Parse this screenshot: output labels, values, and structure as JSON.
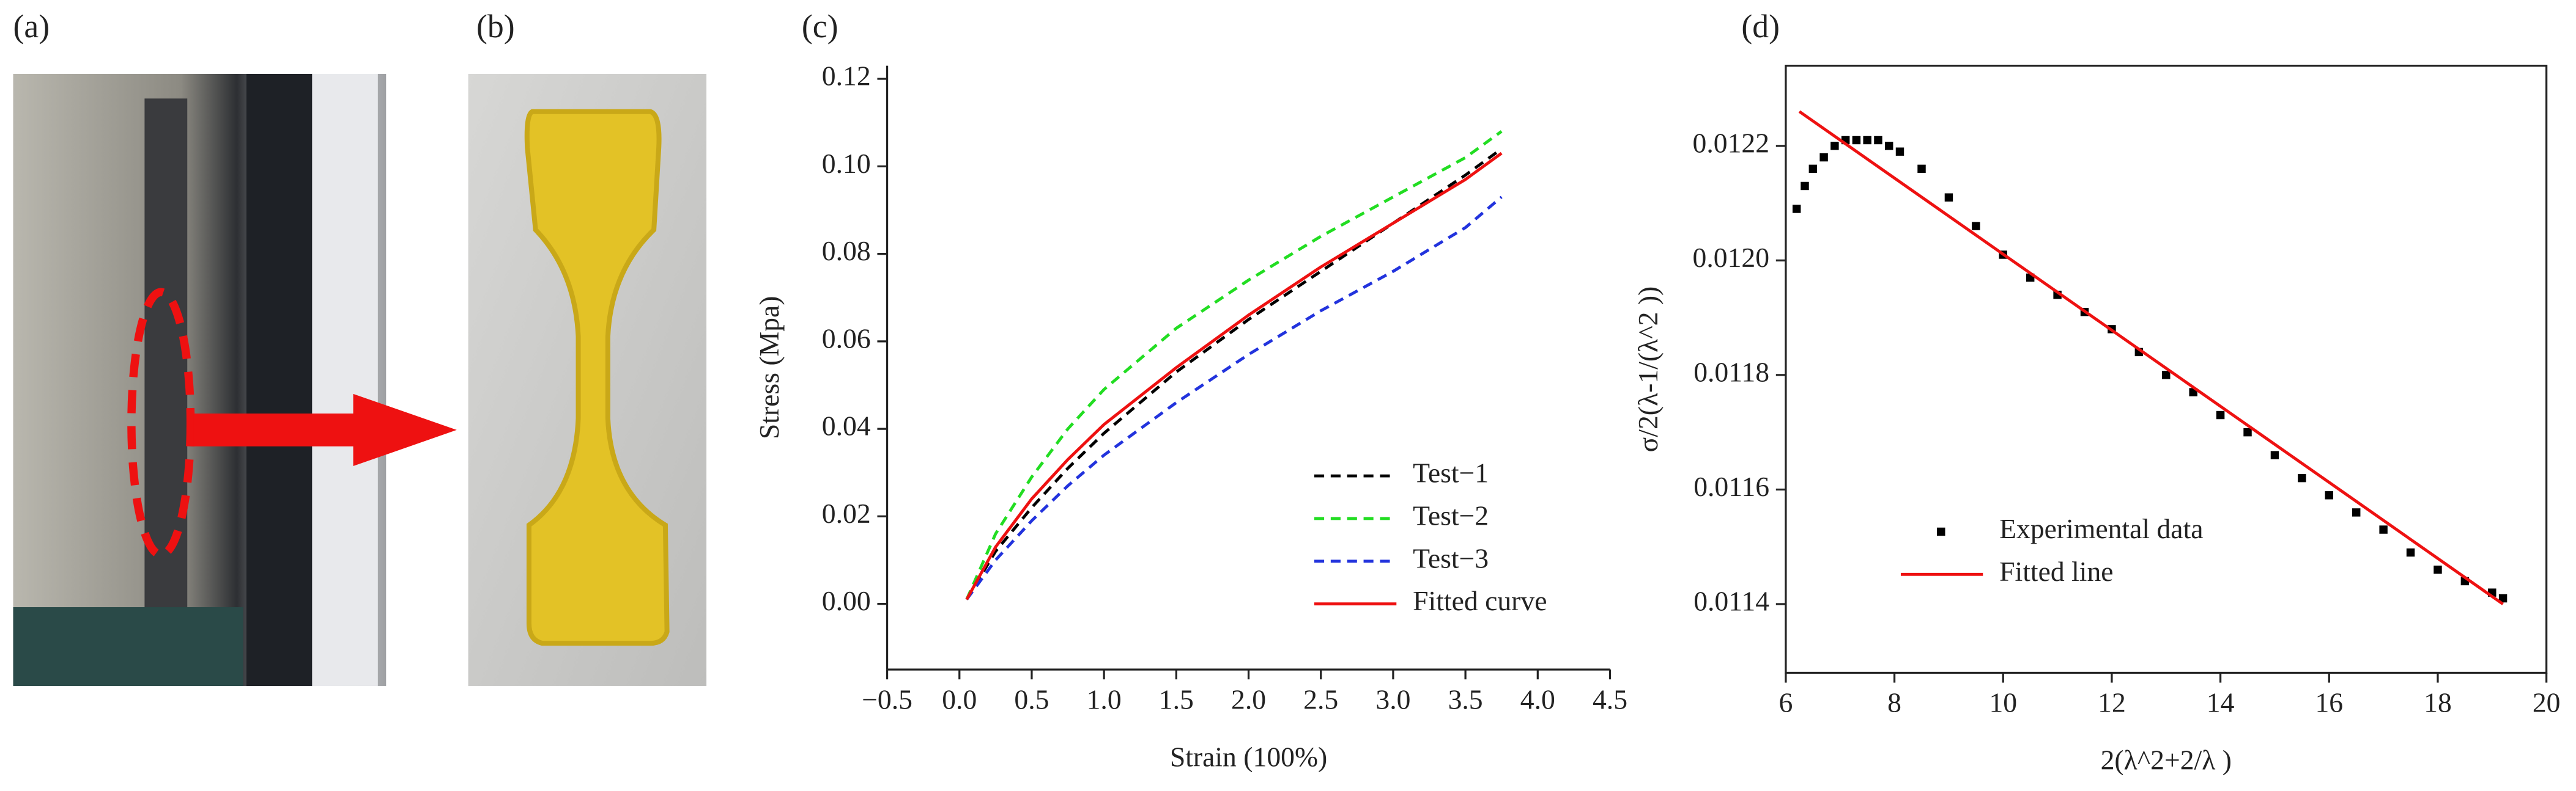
{
  "panel_labels": [
    "(a)",
    "(b)",
    "(c)",
    "(d)"
  ],
  "chart_data": [
    {
      "type": "line",
      "frame": "axes",
      "xlabel": "Strain (100%)",
      "ylabel": "Stress (Mpa)",
      "xlim": [
        -0.5,
        4.5
      ],
      "xticks": [
        {
          "value": -0.5,
          "label": "−0.5"
        },
        {
          "value": 0,
          "label": "0.0"
        },
        0.5,
        {
          "value": 1,
          "label": "1.0"
        },
        1.5,
        {
          "value": 2,
          "label": "2.0"
        },
        2.5,
        {
          "value": 3,
          "label": "3.0"
        },
        3.5,
        {
          "value": 4,
          "label": "4.0"
        },
        4.5
      ],
      "ylim": [
        -0.015,
        0.123
      ],
      "yticks": [
        {
          "value": 0,
          "label": "0.00"
        },
        {
          "value": 0.02,
          "label": "0.02"
        },
        {
          "value": 0.04,
          "label": "0.04"
        },
        {
          "value": 0.06,
          "label": "0.06"
        },
        {
          "value": 0.08,
          "label": "0.08"
        },
        {
          "value": 0.1,
          "label": "0.10"
        },
        {
          "value": 0.12,
          "label": "0.12"
        }
      ],
      "legend": "lower right",
      "x": [
        0.05,
        0.25,
        0.5,
        0.75,
        1.0,
        1.5,
        2.0,
        2.5,
        3.0,
        3.5,
        3.75
      ],
      "series": [
        {
          "name": "Test−1",
          "color": "#000000",
          "dashed": true,
          "values": [
            0.001,
            0.012,
            0.022,
            0.031,
            0.039,
            0.053,
            0.065,
            0.076,
            0.087,
            0.098,
            0.104
          ]
        },
        {
          "name": "Test−2",
          "color": "#22dd22",
          "dashed": true,
          "values": [
            0.001,
            0.016,
            0.029,
            0.04,
            0.049,
            0.063,
            0.074,
            0.084,
            0.093,
            0.102,
            0.108
          ]
        },
        {
          "name": "Test−3",
          "color": "#2233dd",
          "dashed": true,
          "values": [
            0.001,
            0.01,
            0.019,
            0.027,
            0.034,
            0.046,
            0.057,
            0.067,
            0.076,
            0.086,
            0.093
          ]
        },
        {
          "name": "Fitted curve",
          "color": "#ee1111",
          "dashed": false,
          "values": [
            0.001,
            0.013,
            0.024,
            0.033,
            0.041,
            0.054,
            0.066,
            0.077,
            0.087,
            0.097,
            0.103
          ]
        }
      ]
    },
    {
      "type": "scatter",
      "frame": "box",
      "xlabel": "2(λ^2+2/λ )",
      "ylabel": "σ/2(λ-1/(λ^2 ))",
      "xlim": [
        6,
        20
      ],
      "xticks": [
        6,
        8,
        10,
        12,
        14,
        16,
        18,
        20
      ],
      "ylim": [
        0.01128,
        0.01234
      ],
      "yticks": [
        0.0114,
        0.0116,
        0.0118,
        {
          "value": 0.012,
          "label": "0.0120"
        },
        0.0122
      ],
      "legend": "lower left",
      "series": [
        {
          "name": "Experimental data",
          "color": "#000000",
          "kind": "points",
          "x": [
            6.2,
            6.35,
            6.5,
            6.7,
            6.9,
            7.1,
            7.3,
            7.5,
            7.7,
            7.9,
            8.1,
            8.5,
            9.0,
            9.5,
            10.0,
            10.5,
            11.0,
            11.5,
            12.0,
            12.5,
            13.0,
            13.5,
            14.0,
            14.5,
            15.0,
            15.5,
            16.0,
            16.5,
            17.0,
            17.5,
            18.0,
            18.5,
            19.0,
            19.2
          ],
          "values": [
            0.01209,
            0.01213,
            0.01216,
            0.01218,
            0.0122,
            0.01221,
            0.01221,
            0.01221,
            0.01221,
            0.0122,
            0.01219,
            0.01216,
            0.01211,
            0.01206,
            0.01201,
            0.01197,
            0.01194,
            0.01191,
            0.01188,
            0.01184,
            0.0118,
            0.01177,
            0.01173,
            0.0117,
            0.01166,
            0.01162,
            0.01159,
            0.01156,
            0.01153,
            0.01149,
            0.01146,
            0.01144,
            0.01142,
            0.01141
          ]
        },
        {
          "name": "Fitted line",
          "color": "#ee1111",
          "kind": "line",
          "x": [
            6.25,
            19.2
          ],
          "values": [
            0.01226,
            0.0114
          ]
        }
      ]
    }
  ]
}
